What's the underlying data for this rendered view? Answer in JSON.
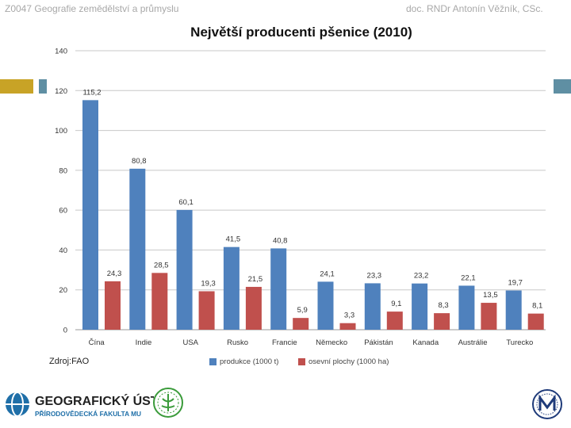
{
  "header": {
    "left": "Z0047 Geografie zemědělství a průmyslu",
    "right": "doc. RNDr Antonín Věžník, CSc."
  },
  "source": "Zdroj:FAO",
  "logos": {
    "geo_line1": "GEOGRAFICKÝ ÚSTAV",
    "geo_line2": "PŘÍRODOVĚDECKÁ FAKULTA MU",
    "geo_icon": "globe-icon",
    "faculty_icon": "faculty-seal-icon",
    "muni_icon": "muni-seal-icon"
  },
  "colors": {
    "produkce": "#4f81bd",
    "osevni": "#c0504d",
    "accent_gold": "#c8a326",
    "accent_teal": "#5f8fa3"
  },
  "chart_data": {
    "type": "bar",
    "title": "Největší producenti pšenice (2010)",
    "categories": [
      "Čína",
      "Indie",
      "USA",
      "Rusko",
      "Francie",
      "Německo",
      "Pákistán",
      "Kanada",
      "Austrálie",
      "Turecko"
    ],
    "series": [
      {
        "name": "produkce (1000 t)",
        "values": [
          115.2,
          80.8,
          60.1,
          41.5,
          40.8,
          24.1,
          23.3,
          23.2,
          22.1,
          19.7
        ],
        "labels": [
          "115,2",
          "80,8",
          "60,1",
          "41,5",
          "40,8",
          "24,1",
          "23,3",
          "23,2",
          "22,1",
          "19,7"
        ]
      },
      {
        "name": "osevní plochy (1000 ha)",
        "values": [
          24.3,
          28.5,
          19.3,
          21.5,
          5.9,
          3.3,
          9.1,
          8.3,
          13.5,
          8.1
        ],
        "labels": [
          "24,3",
          "28,5",
          "19,3",
          "21,5",
          "5,9",
          "3,3",
          "9,1",
          "8,3",
          "13,5",
          "8,1"
        ]
      }
    ],
    "ylim": [
      0,
      140
    ],
    "yticks": [
      0,
      20,
      40,
      60,
      80,
      100,
      120,
      140
    ],
    "grid": true,
    "legend": "bottom"
  }
}
